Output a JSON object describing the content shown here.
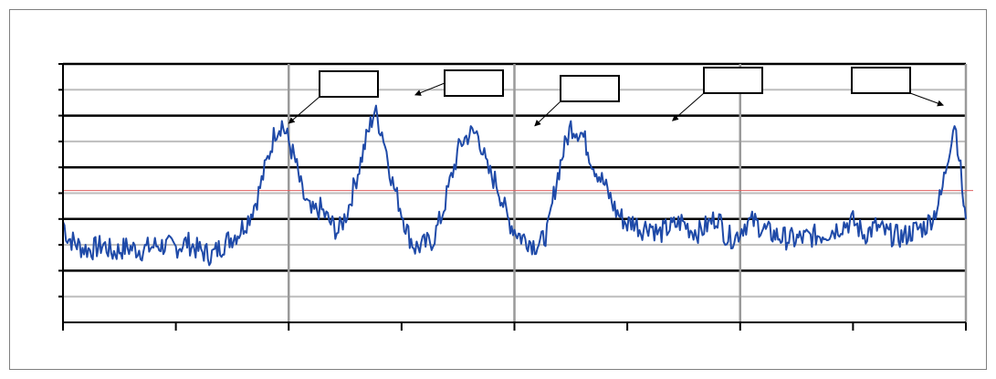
{
  "chart_data": {
    "type": "line",
    "title": "",
    "xlabel": "",
    "ylabel": "",
    "xlim": [
      0,
      4
    ],
    "ylim": [
      0,
      10
    ],
    "grid": true,
    "legend": "none",
    "colors": {
      "series": "#1f4aa8",
      "threshold": "#e06060",
      "grid_major": "#000000",
      "grid_minor": "#bdbdbd",
      "grid_vertical": "#9a9a9a",
      "annotation_box": "#000000"
    },
    "threshold": 5.1,
    "series": [
      {
        "x": [
          0.0,
          0.02,
          0.05,
          0.08,
          0.12,
          0.18,
          0.22,
          0.28,
          0.35,
          0.42,
          0.5,
          0.55,
          0.6,
          0.66,
          0.72,
          0.78,
          0.82,
          0.86,
          0.9,
          0.94,
          0.97,
          1.0,
          1.03,
          1.06,
          1.1,
          1.14,
          1.18,
          1.22,
          1.26,
          1.3,
          1.35,
          1.38,
          1.42,
          1.46,
          1.5,
          1.53,
          1.56,
          1.6,
          1.64,
          1.68,
          1.72,
          1.76,
          1.8,
          1.84,
          1.88,
          1.92,
          1.95,
          1.97,
          2.0,
          2.03,
          2.06,
          2.09,
          2.12,
          2.15,
          2.18,
          2.21,
          2.25,
          2.3,
          2.35,
          2.4,
          2.45,
          2.5,
          2.53,
          2.56,
          2.6,
          2.64,
          2.67,
          2.7,
          2.74,
          2.78,
          2.82,
          2.86,
          2.9,
          2.94,
          2.98,
          3.02,
          3.06,
          3.12,
          3.18,
          3.24,
          3.3,
          3.36,
          3.42,
          3.46,
          3.5,
          3.55,
          3.6,
          3.66,
          3.72,
          3.78,
          3.82,
          3.86,
          3.89,
          3.91,
          3.93,
          3.95,
          3.97,
          3.99,
          4.0
        ],
        "y": [
          3.9,
          3.3,
          3.1,
          2.9,
          2.8,
          3.0,
          2.7,
          2.9,
          2.8,
          3.0,
          2.9,
          3.1,
          2.8,
          2.6,
          3.1,
          3.5,
          4.0,
          4.8,
          6.1,
          7.4,
          7.7,
          7.0,
          6.2,
          5.0,
          4.2,
          4.4,
          3.9,
          3.5,
          4.3,
          5.6,
          7.3,
          8.2,
          7.2,
          5.4,
          4.3,
          3.4,
          2.9,
          3.0,
          3.2,
          4.2,
          5.6,
          6.9,
          7.3,
          7.3,
          5.9,
          5.4,
          4.6,
          4.0,
          3.6,
          3.3,
          3.2,
          3.0,
          3.1,
          3.6,
          5.2,
          6.4,
          7.6,
          7.3,
          6.1,
          5.3,
          4.3,
          3.8,
          3.9,
          3.6,
          3.8,
          3.4,
          3.6,
          3.7,
          3.9,
          3.6,
          3.5,
          3.8,
          4.1,
          3.3,
          3.3,
          3.8,
          3.9,
          3.5,
          3.3,
          3.2,
          3.3,
          3.4,
          3.6,
          3.8,
          3.9,
          3.4,
          3.7,
          3.4,
          3.3,
          3.6,
          3.7,
          4.2,
          4.9,
          5.9,
          6.9,
          7.8,
          6.5,
          4.6,
          4.0
        ]
      }
    ],
    "annotations": [
      {
        "label": "",
        "target": [
          1.0,
          7.7
        ]
      },
      {
        "label": "",
        "target": [
          1.56,
          8.8
        ]
      },
      {
        "label": "",
        "target": [
          2.09,
          7.6
        ]
      },
      {
        "label": "",
        "target": [
          2.7,
          7.8
        ]
      },
      {
        "label": "",
        "target": [
          3.9,
          8.4
        ]
      }
    ]
  }
}
